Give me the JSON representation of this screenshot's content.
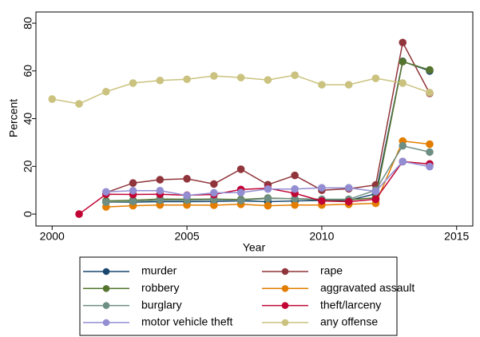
{
  "chart_data": {
    "type": "line",
    "x_label": "Year",
    "y_label": "Percent",
    "x": [
      2000,
      2001,
      2002,
      2003,
      2004,
      2005,
      2006,
      2007,
      2008,
      2009,
      2010,
      2011,
      2012,
      2013,
      2014
    ],
    "xlim": [
      1999.4,
      2015.6
    ],
    "xticks": [
      2000,
      2005,
      2010,
      2015
    ],
    "ylim": [
      -5,
      84.7
    ],
    "yticks": [
      0,
      20,
      40,
      60,
      80
    ],
    "series": [
      {
        "name": "murder",
        "color": "#1a476f",
        "values": [
          null,
          null,
          5,
          5,
          5.2,
          5.2,
          5.3,
          5.5,
          5.2,
          5.5,
          5.7,
          5.7,
          8.5,
          64,
          60
        ]
      },
      {
        "name": "rape",
        "color": "#90353b",
        "values": [
          null,
          null,
          9,
          13,
          14.4,
          14.8,
          12.6,
          18.8,
          12.3,
          16.2,
          10,
          10.6,
          12.2,
          71.9,
          50.6
        ]
      },
      {
        "name": "robbery",
        "color": "#55752f",
        "values": [
          null,
          null,
          5.5,
          5.8,
          6.3,
          6.2,
          6.3,
          6.1,
          6.7,
          6.4,
          6,
          6,
          6.8,
          63.9,
          60.4
        ]
      },
      {
        "name": "aggravated assault",
        "color": "#e37e00",
        "values": [
          null,
          null,
          3,
          3.5,
          3.8,
          3.8,
          3.7,
          4.1,
          3.5,
          3.8,
          3.8,
          4.1,
          4.5,
          30.6,
          29.3
        ]
      },
      {
        "name": "burglary",
        "color": "#6e8e84",
        "values": [
          null,
          null,
          5,
          5.3,
          5.8,
          5.8,
          6,
          5.7,
          6.5,
          6.5,
          6.2,
          6.2,
          10,
          28.6,
          26
        ]
      },
      {
        "name": "theft/larceny",
        "color": "#c10534",
        "values": [
          null,
          0,
          8.3,
          8.2,
          8.3,
          7.9,
          8.2,
          10.3,
          10.8,
          8.7,
          5.5,
          5.2,
          6.2,
          22,
          21
        ]
      },
      {
        "name": "motor vehicle theft",
        "color": "#938dd2",
        "values": [
          null,
          null,
          9.3,
          9.8,
          9.8,
          7.8,
          8.9,
          9,
          10.5,
          10.5,
          11,
          11,
          9.5,
          22,
          19.9
        ]
      },
      {
        "name": "any offense",
        "color": "#cac27e",
        "values": [
          48.2,
          46.2,
          51.3,
          54.9,
          56,
          56.5,
          57.9,
          57.2,
          56.2,
          58.2,
          54.2,
          54.2,
          56.9,
          54.9,
          50.9
        ]
      }
    ]
  }
}
